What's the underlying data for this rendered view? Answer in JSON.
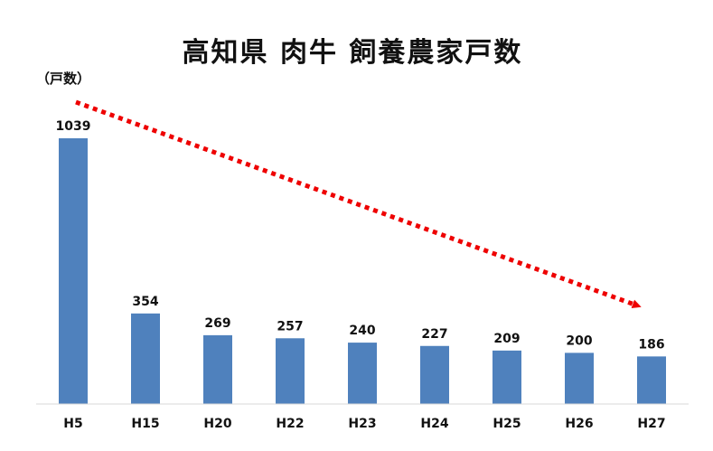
{
  "chart_data": {
    "type": "bar",
    "title": "高知県 肉牛 飼養農家戸数",
    "ylabel": "（戸数）",
    "xlabel": "",
    "categories": [
      "H5",
      "H15",
      "H20",
      "H22",
      "H23",
      "H24",
      "H25",
      "H26",
      "H27"
    ],
    "values": [
      1039,
      354,
      269,
      257,
      240,
      227,
      209,
      200,
      186
    ],
    "ylim": [
      0,
      1039
    ],
    "grid": false,
    "legend": "none",
    "bar_color": "#4F81BD",
    "trend_arrow_color": "#EE0000",
    "trend": "decreasing"
  }
}
